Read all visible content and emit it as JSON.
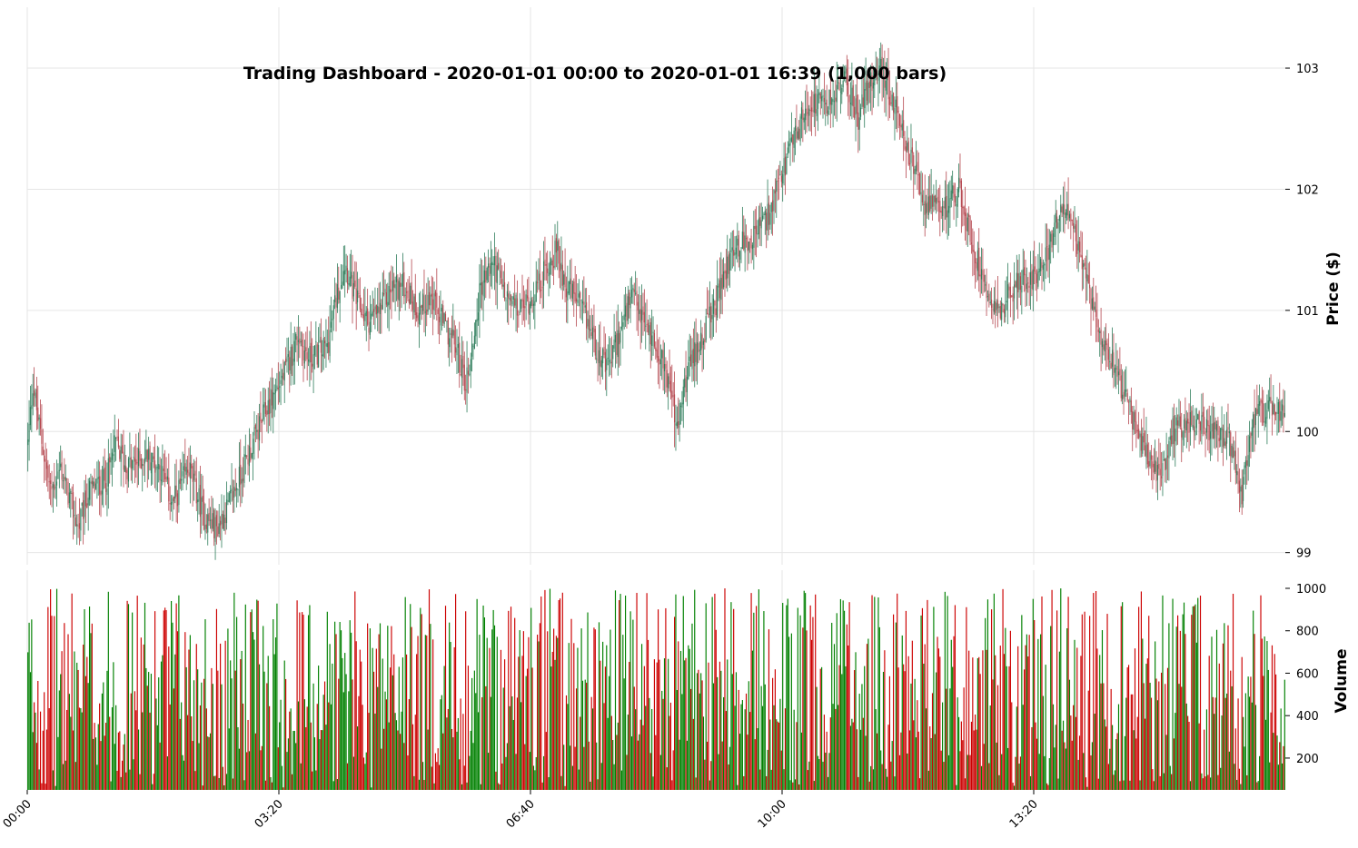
{
  "chart_data": {
    "type": "candlestick",
    "title": "Trading Dashboard - 2020-01-01 00:00 to 2020-01-01 16:39 (1,000 bars)",
    "price_panel": {
      "ylabel": "Price ($)",
      "ylim": [
        98.9,
        103.45
      ],
      "yticks": [
        99,
        100,
        101,
        102,
        103
      ],
      "grid": true,
      "up_color": "#2e7d5b",
      "down_color": "#b5474f",
      "close_path_keypoints": [
        [
          0,
          99.9
        ],
        [
          4,
          100.4
        ],
        [
          8,
          100.1
        ],
        [
          18,
          99.5
        ],
        [
          26,
          99.7
        ],
        [
          40,
          99.2
        ],
        [
          48,
          99.5
        ],
        [
          62,
          99.6
        ],
        [
          70,
          99.9
        ],
        [
          78,
          99.7
        ],
        [
          95,
          99.8
        ],
        [
          105,
          99.7
        ],
        [
          115,
          99.4
        ],
        [
          128,
          99.7
        ],
        [
          140,
          99.3
        ],
        [
          150,
          99.2
        ],
        [
          160,
          99.4
        ],
        [
          175,
          99.8
        ],
        [
          190,
          100.2
        ],
        [
          205,
          100.5
        ],
        [
          215,
          100.8
        ],
        [
          222,
          100.6
        ],
        [
          238,
          100.7
        ],
        [
          245,
          101.1
        ],
        [
          252,
          101.4
        ],
        [
          260,
          101.1
        ],
        [
          270,
          100.9
        ],
        [
          280,
          101.0
        ],
        [
          290,
          101.2
        ],
        [
          300,
          101.2
        ],
        [
          310,
          101.0
        ],
        [
          320,
          101.1
        ],
        [
          330,
          100.9
        ],
        [
          340,
          100.7
        ],
        [
          348,
          100.4
        ],
        [
          352,
          100.6
        ],
        [
          360,
          101.2
        ],
        [
          370,
          101.4
        ],
        [
          380,
          101.1
        ],
        [
          390,
          101.0
        ],
        [
          400,
          101.1
        ],
        [
          410,
          101.3
        ],
        [
          420,
          101.5
        ],
        [
          428,
          101.2
        ],
        [
          435,
          101.1
        ],
        [
          445,
          100.9
        ],
        [
          452,
          100.7
        ],
        [
          460,
          100.5
        ],
        [
          470,
          100.8
        ],
        [
          480,
          101.1
        ],
        [
          490,
          100.9
        ],
        [
          500,
          100.7
        ],
        [
          510,
          100.4
        ],
        [
          516,
          100.0
        ],
        [
          522,
          100.4
        ],
        [
          532,
          100.7
        ],
        [
          545,
          101.0
        ],
        [
          560,
          101.5
        ],
        [
          575,
          101.6
        ],
        [
          590,
          101.8
        ],
        [
          605,
          102.3
        ],
        [
          620,
          102.7
        ],
        [
          635,
          102.7
        ],
        [
          650,
          102.9
        ],
        [
          660,
          102.6
        ],
        [
          670,
          102.9
        ],
        [
          678,
          103.0
        ],
        [
          688,
          102.7
        ],
        [
          700,
          102.3
        ],
        [
          712,
          101.9
        ],
        [
          725,
          101.8
        ],
        [
          740,
          102.0
        ],
        [
          752,
          101.5
        ],
        [
          762,
          101.2
        ],
        [
          772,
          101.0
        ],
        [
          785,
          101.2
        ],
        [
          800,
          101.3
        ],
        [
          812,
          101.5
        ],
        [
          822,
          101.9
        ],
        [
          832,
          101.6
        ],
        [
          840,
          101.3
        ],
        [
          850,
          100.9
        ],
        [
          862,
          100.6
        ],
        [
          875,
          100.2
        ],
        [
          885,
          99.9
        ],
        [
          900,
          99.6
        ],
        [
          910,
          100.0
        ],
        [
          925,
          100.1
        ],
        [
          940,
          100.0
        ],
        [
          955,
          99.9
        ],
        [
          965,
          99.5
        ],
        [
          975,
          100.1
        ],
        [
          985,
          100.2
        ],
        [
          999,
          100.1
        ]
      ]
    },
    "volume_panel": {
      "ylabel": "Volume",
      "ylim": [
        50,
        1000
      ],
      "yticks": [
        200,
        400,
        600,
        800,
        1000
      ],
      "up_color": "#008000",
      "down_color": "#cc0000"
    },
    "x_axis": {
      "bars": 1000,
      "tick_labels": [
        "00:00",
        "03:20",
        "06:40",
        "10:00",
        "13:20"
      ],
      "tick_bar_index": [
        0,
        200,
        400,
        600,
        800
      ],
      "label_rotation_deg": -45
    }
  }
}
